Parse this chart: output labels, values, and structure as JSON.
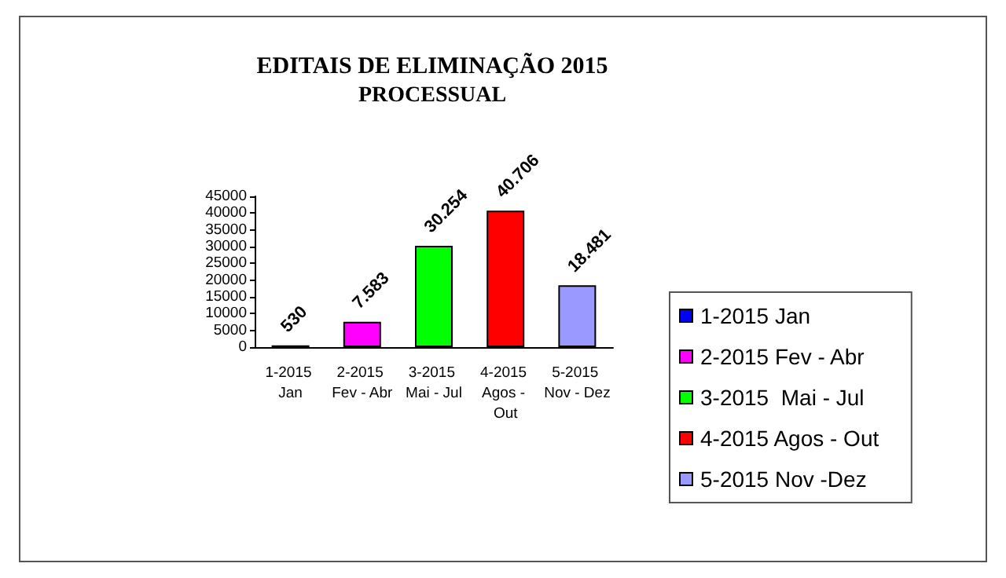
{
  "chart_data": {
    "type": "bar",
    "title": "EDITAIS DE ELIMINAÇÃO 2015",
    "subtitle": "PROCESSUAL",
    "categories": [
      "1-2015 Jan",
      "2-2015 Fev - Abr",
      "3-2015 Mai - Jul",
      "4-2015 Agos - Out",
      "5-2015 Nov - Dez"
    ],
    "series": [
      {
        "name": "1-2015 Jan",
        "color": "#0000ff",
        "values": [
          530,
          null,
          null,
          null,
          null
        ],
        "value_labels": [
          "530",
          null,
          null,
          null,
          null
        ]
      },
      {
        "name": "2-2015 Fev - Abr",
        "color": "#ff00ff",
        "values": [
          null,
          7583,
          null,
          null,
          null
        ],
        "value_labels": [
          null,
          "7.583",
          null,
          null,
          null
        ]
      },
      {
        "name": "3-2015  Mai - Jul",
        "color": "#00ff00",
        "values": [
          null,
          null,
          30254,
          null,
          null
        ],
        "value_labels": [
          null,
          null,
          "30.254",
          null,
          null
        ]
      },
      {
        "name": "4-2015 Agos - Out",
        "color": "#ff0000",
        "values": [
          null,
          null,
          null,
          40706,
          null
        ],
        "value_labels": [
          null,
          null,
          null,
          "40.706",
          null
        ]
      },
      {
        "name": "5-2015 Nov -Dez",
        "color": "#9999ff",
        "values": [
          null,
          null,
          null,
          null,
          18481
        ],
        "value_labels": [
          null,
          null,
          null,
          null,
          "18.481"
        ]
      }
    ],
    "ylim": [
      0,
      45000
    ],
    "yticks": [
      0,
      5000,
      10000,
      15000,
      20000,
      25000,
      30000,
      35000,
      40000,
      45000
    ],
    "grid": false,
    "legend": "right"
  }
}
